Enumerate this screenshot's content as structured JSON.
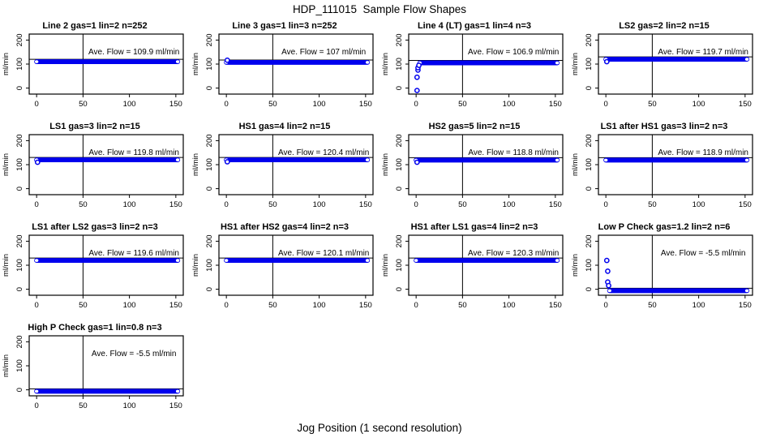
{
  "page": {
    "title": "HDP_111015  Sample Flow Shapes",
    "xlabel": "Jog Position (1 second resolution)"
  },
  "colors": {
    "point_blue": "#0000ee",
    "axis_black": "#000000",
    "background": "#ffffff"
  },
  "chart_data": {
    "type": "scatter",
    "title": "HDP_111015  Sample Flow Shapes",
    "xlabel": "Jog Position (1 second resolution)",
    "ylabel": "ml/min",
    "xticks": [
      0,
      50,
      100,
      150
    ],
    "yticks": [
      0,
      100,
      200
    ],
    "xlim": [
      -8,
      158
    ],
    "ylim": [
      -25,
      225
    ],
    "vline_x": 50,
    "grid": false,
    "legend": "none",
    "panels": [
      {
        "title": "Line 2 gas=1 lin=2 n=252",
        "ave_flow": 109.9,
        "annotation": "Ave. Flow =  109.9  ml/min",
        "band": {
          "x_start": 0,
          "x_end": 152,
          "center": 110,
          "halfwidth": 10
        },
        "extra_points": []
      },
      {
        "title": "Line 3 gas=1 lin=3 n=252",
        "ave_flow": 107,
        "annotation": "Ave. Flow =  107  ml/min",
        "band": {
          "x_start": 0,
          "x_end": 152,
          "center": 107,
          "halfwidth": 10
        },
        "extra_points": [
          [
            1,
            116
          ]
        ]
      },
      {
        "title": "Line 4 (LT) gas=1 lin=4 n=3",
        "ave_flow": 106.9,
        "annotation": "Ave. Flow =  106.9  ml/min",
        "band": {
          "x_start": 4,
          "x_end": 152,
          "center": 105,
          "halfwidth": 10
        },
        "extra_points": [
          [
            1,
            -10
          ],
          [
            1,
            45
          ],
          [
            2,
            75
          ],
          [
            2,
            85
          ],
          [
            3,
            95
          ]
        ]
      },
      {
        "title": "LS2 gas=2 lin=2 n=15",
        "ave_flow": 119.7,
        "annotation": "Ave. Flow =  119.7  ml/min",
        "band": {
          "x_start": 0,
          "x_end": 152,
          "center": 120,
          "halfwidth": 10
        },
        "extra_points": [
          [
            1,
            110
          ]
        ]
      },
      {
        "title": "LS1 gas=3 lin=2 n=15",
        "ave_flow": 119.8,
        "annotation": "Ave. Flow =  119.8  ml/min",
        "band": {
          "x_start": 0,
          "x_end": 152,
          "center": 120,
          "halfwidth": 10
        },
        "extra_points": [
          [
            1,
            110
          ]
        ]
      },
      {
        "title": "HS1 gas=4 lin=2 n=15",
        "ave_flow": 120.4,
        "annotation": "Ave. Flow =  120.4  ml/min",
        "band": {
          "x_start": 0,
          "x_end": 152,
          "center": 120,
          "halfwidth": 10
        },
        "extra_points": [
          [
            1,
            112
          ]
        ]
      },
      {
        "title": "HS2 gas=5 lin=2 n=15",
        "ave_flow": 118.8,
        "annotation": "Ave. Flow =  118.8  ml/min",
        "band": {
          "x_start": 0,
          "x_end": 152,
          "center": 119,
          "halfwidth": 10
        },
        "extra_points": [
          [
            1,
            110
          ]
        ]
      },
      {
        "title": "LS1 after HS1 gas=3 lin=2 n=3",
        "ave_flow": 118.9,
        "annotation": "Ave. Flow =  118.9  ml/min",
        "band": {
          "x_start": 0,
          "x_end": 152,
          "center": 119,
          "halfwidth": 10
        },
        "extra_points": []
      },
      {
        "title": "LS1 after LS2 gas=3 lin=2 n=3",
        "ave_flow": 119.6,
        "annotation": "Ave. Flow =  119.6  ml/min",
        "band": {
          "x_start": 0,
          "x_end": 152,
          "center": 120,
          "halfwidth": 10
        },
        "extra_points": []
      },
      {
        "title": "HS1 after HS2 gas=4 lin=2 n=3",
        "ave_flow": 120.1,
        "annotation": "Ave. Flow =  120.1  ml/min",
        "band": {
          "x_start": 0,
          "x_end": 152,
          "center": 120,
          "halfwidth": 10
        },
        "extra_points": []
      },
      {
        "title": "HS1 after LS1 gas=4 lin=2 n=3",
        "ave_flow": 120.3,
        "annotation": "Ave. Flow =  120.3  ml/min",
        "band": {
          "x_start": 0,
          "x_end": 152,
          "center": 120,
          "halfwidth": 10
        },
        "extra_points": []
      },
      {
        "title": "Low P Check gas=1.2 lin=2 n=6",
        "ave_flow": -5.5,
        "annotation": "Ave. Flow =  -5.5  ml/min",
        "band": {
          "x_start": 4,
          "x_end": 152,
          "center": -6,
          "halfwidth": 10
        },
        "extra_points": [
          [
            1,
            120
          ],
          [
            2,
            75
          ],
          [
            2,
            30
          ],
          [
            3,
            15
          ]
        ]
      },
      {
        "title": "High P Check gas=1 lin=0.8 n=3",
        "ave_flow": -5.5,
        "annotation": "Ave. Flow =  -5.5  ml/min",
        "band": {
          "x_start": 0,
          "x_end": 152,
          "center": -6,
          "halfwidth": 10
        },
        "extra_points": []
      }
    ]
  }
}
